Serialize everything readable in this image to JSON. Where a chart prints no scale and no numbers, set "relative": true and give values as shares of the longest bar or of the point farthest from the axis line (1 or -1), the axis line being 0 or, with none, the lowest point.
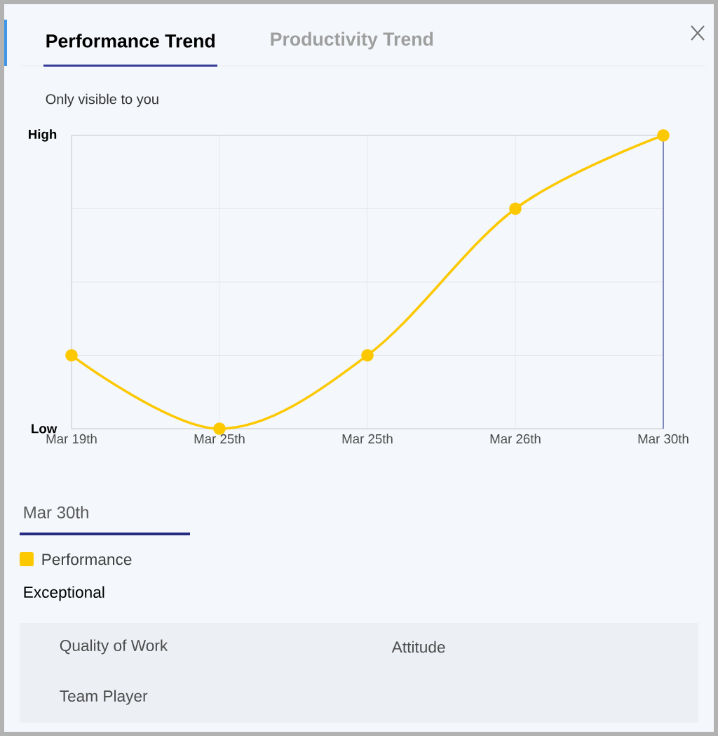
{
  "chart_data": {
    "type": "line",
    "title": "Performance Trend",
    "categories": [
      "Mar 19th",
      "Mar 25th",
      "Mar 25th",
      "Mar 26th",
      "Mar 30th"
    ],
    "series": [
      {
        "name": "Performance",
        "color": "#fcc800",
        "values": [
          0.25,
          0,
          0.25,
          0.75,
          1
        ]
      }
    ],
    "relative": true,
    "grid": true,
    "marker": "circle",
    "line_style": "solid",
    "legend": "bottom",
    "annotations": [
      "Productivity Trend",
      "Only visible to you",
      "Mar 30th",
      "Exceptional",
      "Quality of Work",
      "Attitude",
      "Team Player",
      "High",
      "Low"
    ]
  }
}
